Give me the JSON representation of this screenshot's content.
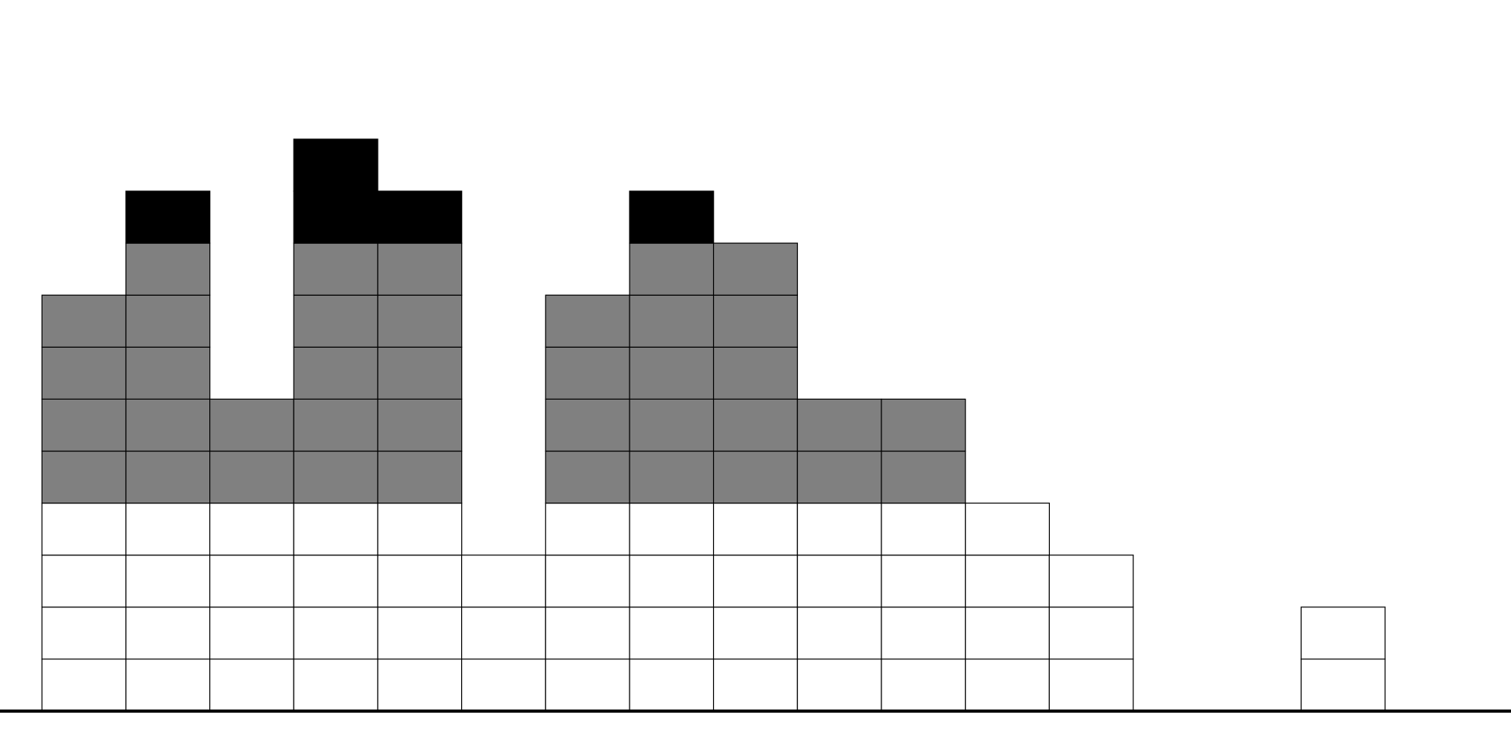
{
  "chart_data": {
    "type": "bar",
    "stacked": true,
    "x": [
      1,
      2,
      3,
      4,
      5,
      6,
      7,
      8,
      9,
      10,
      11,
      12,
      13,
      14,
      15,
      16
    ],
    "series": [
      {
        "color": "#ffffff",
        "values": [
          4,
          4,
          4,
          4,
          4,
          3,
          4,
          4,
          4,
          4,
          4,
          4,
          3,
          0,
          0,
          2
        ]
      },
      {
        "color": "#808080",
        "values": [
          4,
          5,
          2,
          5,
          5,
          0,
          4,
          5,
          5,
          2,
          2,
          0,
          0,
          0,
          0,
          0
        ]
      },
      {
        "color": "#000000",
        "values": [
          0,
          1,
          0,
          2,
          1,
          0,
          0,
          1,
          0,
          0,
          0,
          0,
          0,
          0,
          0,
          0
        ]
      }
    ],
    "ylim": [
      0,
      13
    ],
    "xlim": [
      0,
      18
    ],
    "grid": false,
    "legend": "none",
    "baseline_color": "#000000",
    "cell_outline_color": "#000000"
  }
}
